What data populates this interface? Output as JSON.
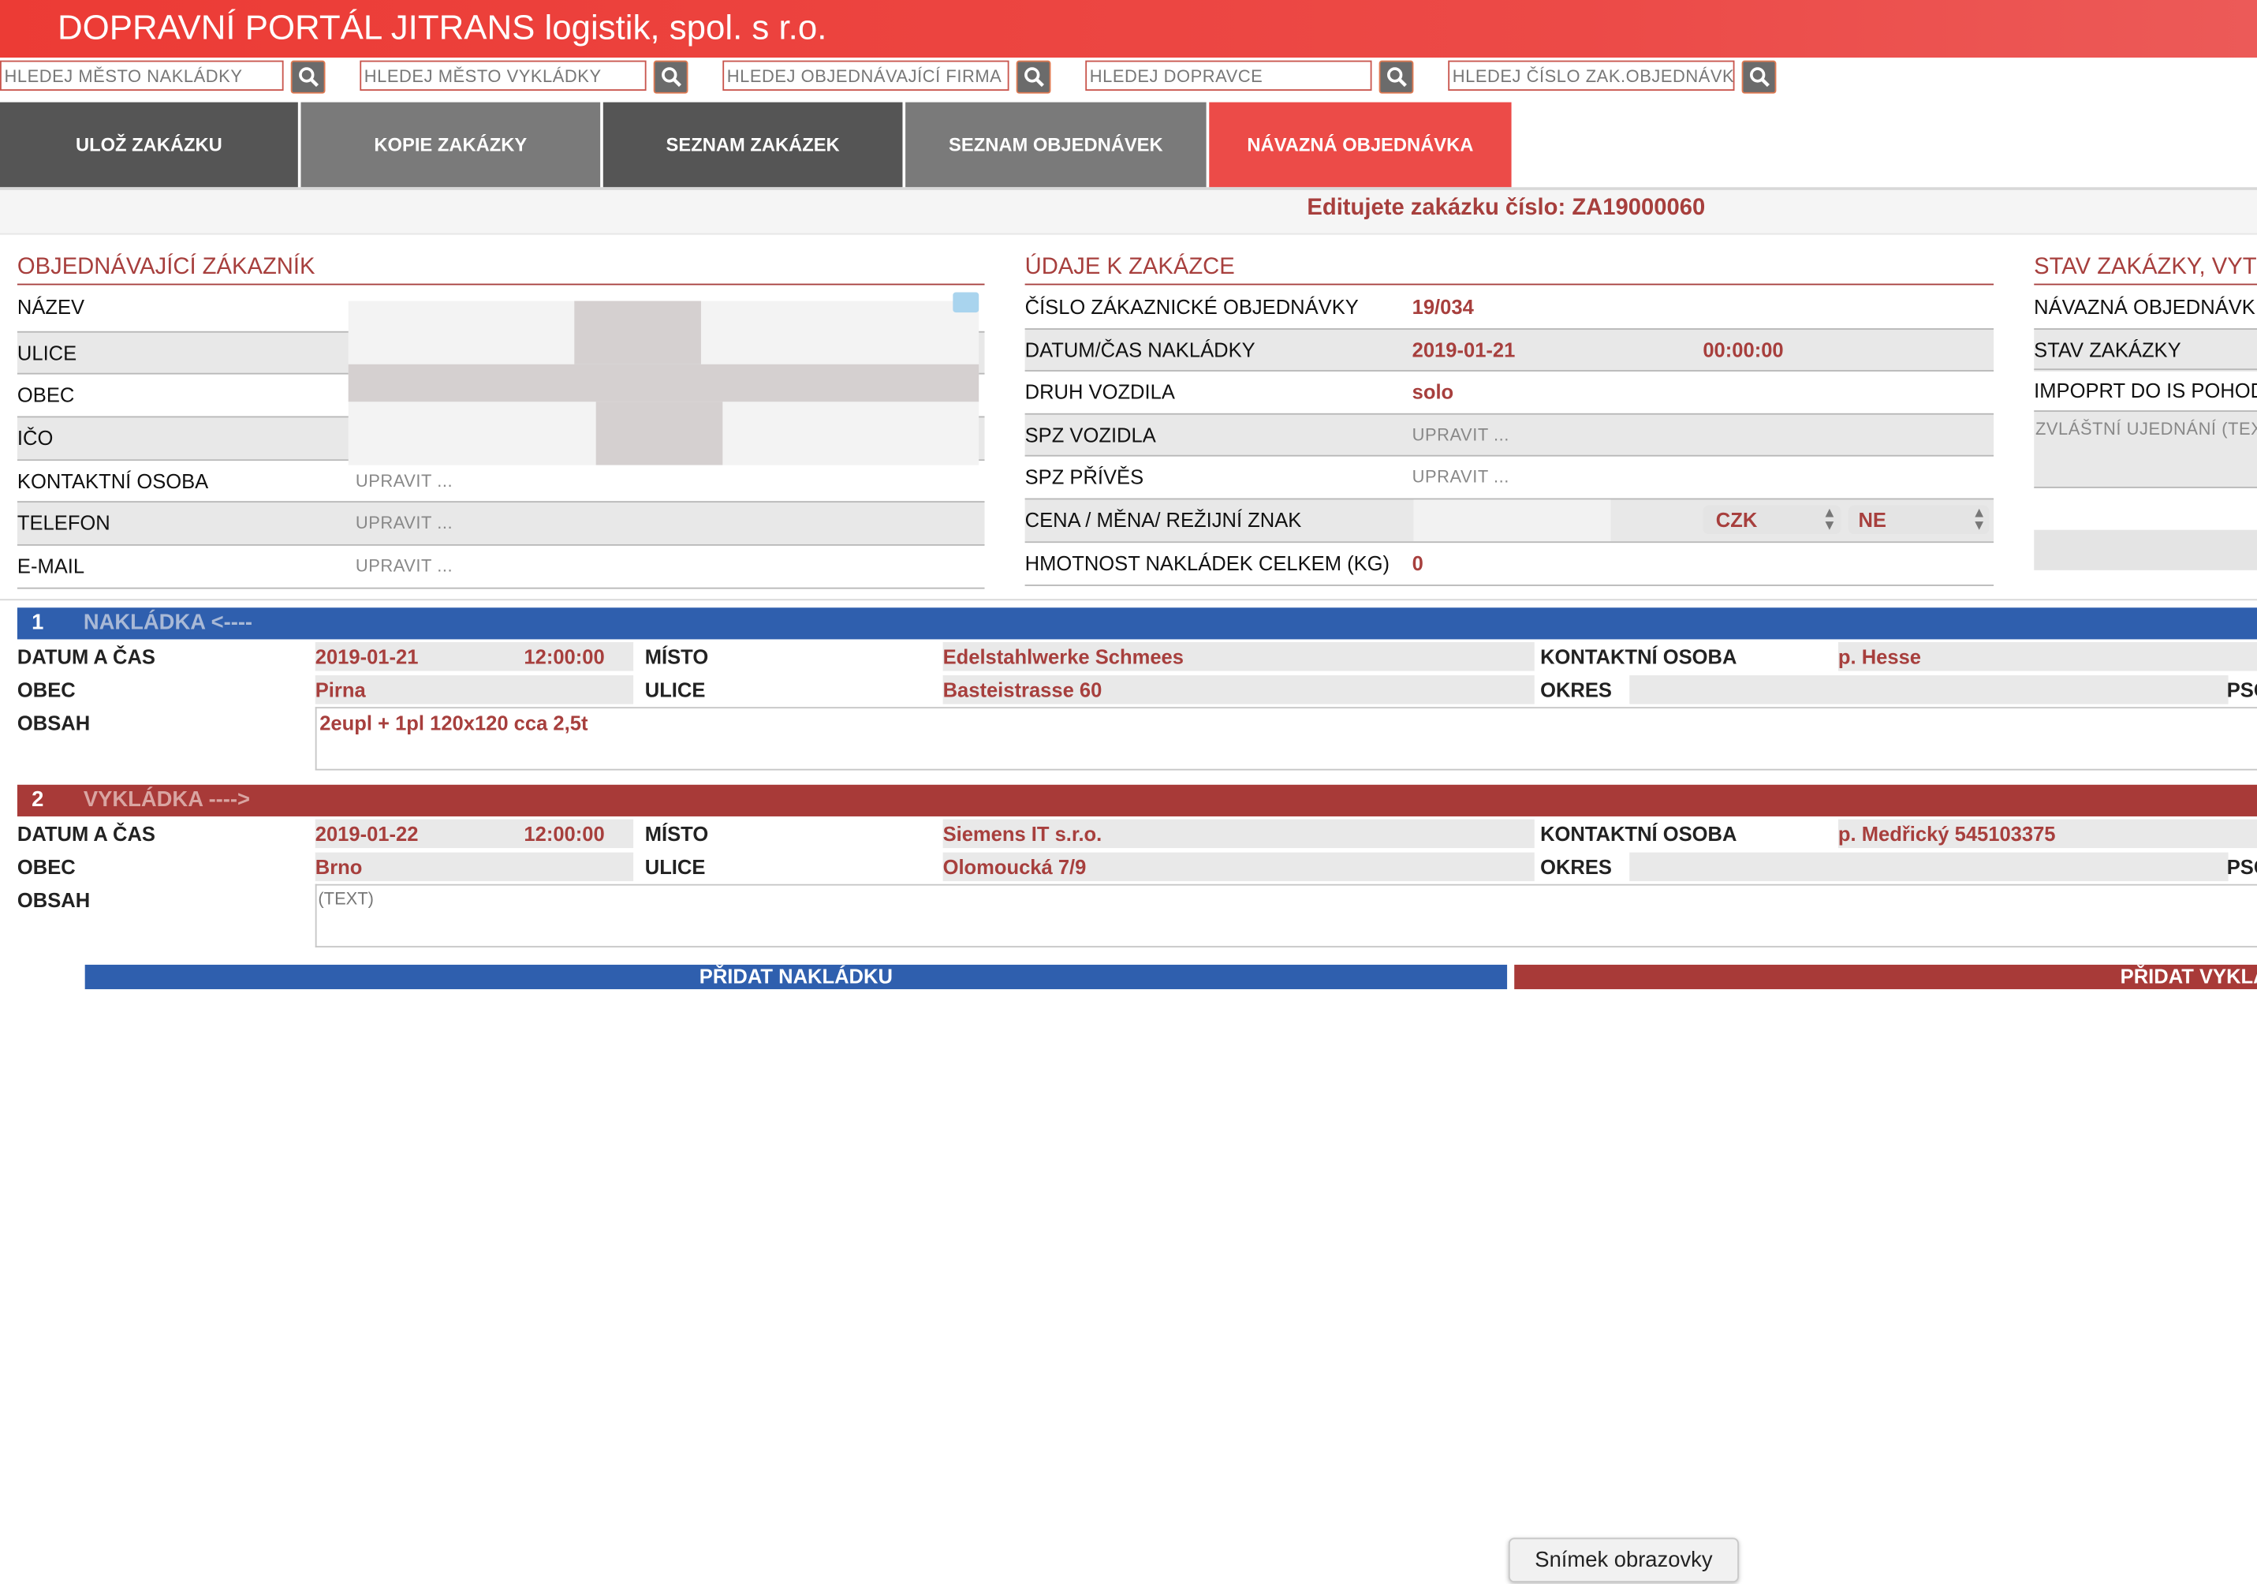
{
  "header": {
    "title": "DOPRAVNÍ PORTÁL JITRANS logistik, spol. s r.o."
  },
  "search": [
    {
      "placeholder": "HLEDEJ MĚSTO NAKLÁDKY"
    },
    {
      "placeholder": "HLEDEJ MĚSTO VYKLÁDKY"
    },
    {
      "placeholder": "HLEDEJ OBJEDNÁVAJÍCÍ FIRMA"
    },
    {
      "placeholder": "HLEDEJ DOPRAVCE"
    },
    {
      "placeholder": "HLEDEJ ČÍSLO ZAK.OBJEDNÁVKY"
    }
  ],
  "toolbar": {
    "save": "ULOŽ ZAKÁZKU",
    "copy": "KOPIE ZAKÁZKY",
    "orders_list": "SEZNAM ZAKÁZEK",
    "purchase_list": "SEZNAM OBJEDNÁVEK",
    "follow_up": "NÁVAZNÁ OBJEDNÁVKA"
  },
  "banner": {
    "text": "Editujete zakázku číslo: ZA19000060"
  },
  "customer": {
    "title": "OBJEDNÁVAJÍCÍ ZÁKAZNÍK",
    "name_label": "NÁZEV",
    "street_label": "ULICE",
    "city_label": "OBEC",
    "ico_label": "IČO",
    "contact_label": "KONTAKTNÍ OSOBA",
    "contact_ph": "UPRAVIT ...",
    "phone_label": "TELEFON",
    "phone_ph": "UPRAVIT ...",
    "email_label": "E-MAIL",
    "email_ph": "UPRAVIT ..."
  },
  "order": {
    "title": "ÚDAJE K ZAKÁZCE",
    "customer_order_label": "ČÍSLO ZÁKAZNICKÉ OBJEDNÁVKY",
    "customer_order_value": "19/034",
    "load_dt_label": "DATUM/ČAS NAKLÁDKY",
    "load_date": "2019-01-21",
    "load_time": "00:00:00",
    "vehicle_type_label": "DRUH VOZDILA",
    "vehicle_type_value": "solo",
    "spz_label": "SPZ VOZIDLA",
    "spz_ph": "UPRAVIT ...",
    "trailer_label": "SPZ PŘÍVĚS",
    "trailer_ph": "UPRAVIT ...",
    "price_label": "CENA / MĚNA/ REŽIJNÍ ZNAK",
    "currency": "CZK",
    "overhead": "NE",
    "weight_label": "HMOTNOST NAKLÁDEK CELKEM (KG)",
    "weight_value": "0"
  },
  "status": {
    "title": "STAV ZAKÁZKY, VYT",
    "follow_label": "NÁVAZNÁ OBJEDNÁVK",
    "state_label": "STAV ZAKÁZKY",
    "import_label": "IMPOPRT DO IS POHOD",
    "special_ph": "ZVLÁŠTNÍ UJEDNÁNÍ (TEX"
  },
  "stops": [
    {
      "num": "1",
      "name": "NAKLÁDKA <----",
      "date_label": "DATUM A ČAS",
      "date": "2019-01-21",
      "time": "12:00:00",
      "place_label": "MÍSTO",
      "place": "Edelstahlwerke Schmees",
      "contact_label": "KONTAKTNÍ OSOBA",
      "contact": "p. Hesse",
      "city_label": "OBEC",
      "city": "Pirna",
      "street_label": "ULICE",
      "street": "Basteistrasse 60",
      "district_label": "OKRES",
      "psc_label": "PSČ",
      "content_label": "OBSAH",
      "content": "2eupl + 1pl 120x120 cca 2,5t"
    },
    {
      "num": "2",
      "name": "VYKLÁDKA ---->",
      "date_label": "DATUM A ČAS",
      "date": "2019-01-22",
      "time": "12:00:00",
      "place_label": "MÍSTO",
      "place": "Siemens IT s.r.o.",
      "contact_label": "KONTAKTNÍ OSOBA",
      "contact": "p. Medřický 545103375",
      "city_label": "OBEC",
      "city": "Brno",
      "street_label": "ULICE",
      "street": "Olomoucká 7/9",
      "district_label": "OKRES",
      "psc_label": "PSČ",
      "content_label": "OBSAH",
      "content_ph": "(TEXT)"
    }
  ],
  "actions": {
    "add_load": "PŘIDAT NAKLÁDKU",
    "add_unload": "PŘIDAT VYKLÁDKU"
  },
  "tooltip": {
    "text": "Snímek obrazovky"
  },
  "colors": {
    "red": "#ec3b35",
    "dark_red": "#a73f3d",
    "blue": "#2f5fae",
    "dark_gray": "#555555",
    "gray": "#7a7a7a"
  }
}
